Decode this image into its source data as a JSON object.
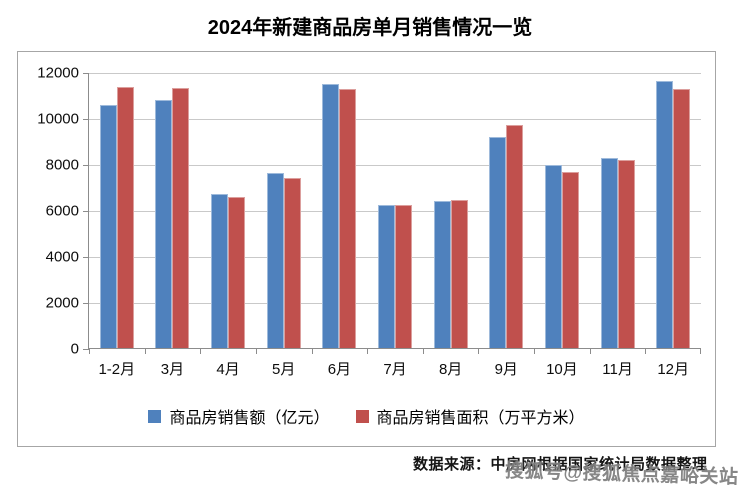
{
  "title": "2024年新建商品房单月销售情况一览",
  "chart_data": {
    "type": "bar",
    "title": "2024年新建商品房单月销售情况一览",
    "categories": [
      "1-2月",
      "3月",
      "4月",
      "5月",
      "6月",
      "7月",
      "8月",
      "9月",
      "10月",
      "11月",
      "12月"
    ],
    "series": [
      {
        "name": "商品房销售额（亿元）",
        "color": "#4F81BD",
        "values": [
          10566,
          10789,
          6712,
          7598,
          11468,
          6197,
          6393,
          9157,
          7975,
          8270,
          11625
        ]
      },
      {
        "name": "商品房销售面积（万平方米）",
        "color": "#C0504D",
        "values": [
          11369,
          11299,
          6584,
          7390,
          11274,
          6233,
          6453,
          9682,
          7646,
          8188,
          11267
        ]
      }
    ],
    "xlabel": "",
    "ylabel": "",
    "ylim": [
      0,
      12000
    ],
    "yticks": [
      0,
      2000,
      4000,
      6000,
      8000,
      10000,
      12000
    ],
    "grid": true,
    "legend_position": "bottom"
  },
  "colors": {
    "series_sales": "#4F81BD",
    "series_area": "#C0504D",
    "gridline": "#C9C9C9",
    "axis": "#8C8C8C",
    "border": "#A6A6A6",
    "watermark_gray": "#6C6C6C"
  },
  "source_note": "数据来源：中房网根据国家统计局数据整理",
  "watermark": "搜狐号@搜狐焦点嘉峪关站"
}
